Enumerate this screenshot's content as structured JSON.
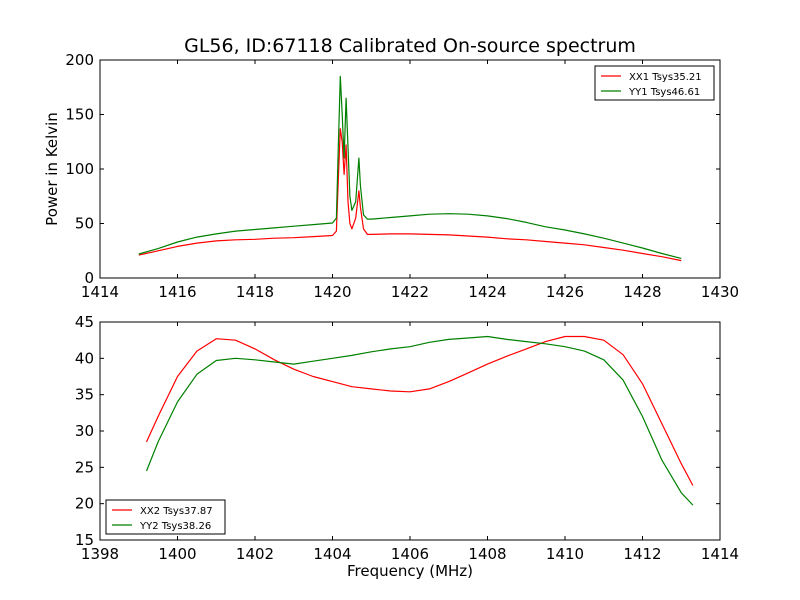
{
  "chart_data": [
    {
      "type": "line",
      "title": "GL56, ID:67118 Calibrated On-source spectrum",
      "xlabel": "",
      "ylabel": "Power in Kelvin",
      "xlim": [
        1414,
        1430
      ],
      "ylim": [
        0,
        200
      ],
      "x_ticks": [
        1414,
        1416,
        1418,
        1420,
        1422,
        1424,
        1426,
        1428,
        1430
      ],
      "y_ticks": [
        0,
        50,
        100,
        150,
        200
      ],
      "grid": false,
      "legend_position": "top-right",
      "series": [
        {
          "name": "XX1 Tsys35.21",
          "color": "#ff0000",
          "x": [
            1415.0,
            1415.5,
            1416.0,
            1416.5,
            1417.0,
            1417.5,
            1418.0,
            1418.5,
            1419.0,
            1419.5,
            1420.0,
            1420.1,
            1420.15,
            1420.2,
            1420.25,
            1420.3,
            1420.35,
            1420.4,
            1420.45,
            1420.5,
            1420.6,
            1420.68,
            1420.72,
            1420.8,
            1420.9,
            1421.0,
            1421.5,
            1422.0,
            1422.5,
            1423.0,
            1423.5,
            1424.0,
            1424.5,
            1425.0,
            1425.5,
            1426.0,
            1426.5,
            1427.0,
            1427.5,
            1428.0,
            1428.5,
            1429.0
          ],
          "values": [
            21,
            25,
            29,
            32,
            34,
            35,
            35.5,
            36.5,
            37,
            38,
            39,
            43,
            90,
            137,
            125,
            95,
            122,
            70,
            50,
            45,
            55,
            80,
            65,
            45,
            40,
            40,
            40.5,
            40.5,
            40,
            39.5,
            38.5,
            37.5,
            36,
            35,
            33.5,
            32,
            30.5,
            28,
            25.5,
            22.5,
            19.5,
            16
          ]
        },
        {
          "name": "YY1 Tsys46.61",
          "color": "#008000",
          "x": [
            1415.0,
            1415.5,
            1416.0,
            1416.5,
            1417.0,
            1417.5,
            1418.0,
            1418.5,
            1419.0,
            1419.5,
            1420.0,
            1420.1,
            1420.15,
            1420.2,
            1420.25,
            1420.3,
            1420.35,
            1420.4,
            1420.45,
            1420.5,
            1420.6,
            1420.68,
            1420.72,
            1420.8,
            1420.9,
            1421.0,
            1421.5,
            1422.0,
            1422.5,
            1423.0,
            1423.5,
            1424.0,
            1424.5,
            1425.0,
            1425.5,
            1426.0,
            1426.5,
            1427.0,
            1427.5,
            1428.0,
            1428.5,
            1429.0
          ],
          "values": [
            22,
            27,
            33,
            37.5,
            40.5,
            43,
            44.5,
            46,
            47.5,
            49,
            50.5,
            55,
            120,
            185,
            150,
            110,
            165,
            120,
            75,
            62,
            70,
            110,
            85,
            58,
            54,
            54,
            55.5,
            57,
            58.5,
            59,
            58.5,
            57,
            54.5,
            51,
            47,
            44,
            40.5,
            36.5,
            32,
            27.5,
            22.5,
            18
          ]
        }
      ]
    },
    {
      "type": "line",
      "title": "",
      "xlabel": "Frequency (MHz)",
      "ylabel": "",
      "xlim": [
        1398,
        1414
      ],
      "ylim": [
        15,
        45
      ],
      "x_ticks": [
        1398,
        1400,
        1402,
        1404,
        1406,
        1408,
        1410,
        1412,
        1414
      ],
      "y_ticks": [
        15,
        20,
        25,
        30,
        35,
        40,
        45
      ],
      "grid": false,
      "legend_position": "bottom-left",
      "series": [
        {
          "name": "XX2 Tsys37.87",
          "color": "#ff0000",
          "x": [
            1399.2,
            1399.5,
            1400.0,
            1400.5,
            1401.0,
            1401.5,
            1402.0,
            1402.5,
            1403.0,
            1403.5,
            1404.0,
            1404.5,
            1405.0,
            1405.5,
            1406.0,
            1406.5,
            1407.0,
            1407.5,
            1408.0,
            1408.5,
            1409.0,
            1409.5,
            1410.0,
            1410.5,
            1411.0,
            1411.5,
            1412.0,
            1412.5,
            1413.0,
            1413.3
          ],
          "values": [
            28.5,
            32,
            37.5,
            41,
            42.7,
            42.5,
            41.3,
            39.8,
            38.5,
            37.5,
            36.8,
            36.1,
            35.8,
            35.5,
            35.4,
            35.8,
            36.8,
            38,
            39.2,
            40.3,
            41.3,
            42.3,
            43,
            43,
            42.5,
            40.5,
            36.5,
            31,
            25.5,
            22.5
          ]
        },
        {
          "name": "YY2 Tsys38.26",
          "color": "#008000",
          "x": [
            1399.2,
            1399.5,
            1400.0,
            1400.5,
            1401.0,
            1401.5,
            1402.0,
            1402.5,
            1403.0,
            1403.5,
            1404.0,
            1404.5,
            1405.0,
            1405.5,
            1406.0,
            1406.5,
            1407.0,
            1407.5,
            1408.0,
            1408.5,
            1409.0,
            1409.5,
            1410.0,
            1410.5,
            1411.0,
            1411.5,
            1412.0,
            1412.5,
            1413.0,
            1413.3
          ],
          "values": [
            24.5,
            28.5,
            34,
            37.8,
            39.7,
            40,
            39.8,
            39.5,
            39.2,
            39.6,
            40,
            40.4,
            40.9,
            41.3,
            41.6,
            42.2,
            42.6,
            42.8,
            43,
            42.6,
            42.3,
            42,
            41.6,
            41,
            39.8,
            37,
            32,
            26,
            21.5,
            19.8
          ]
        }
      ]
    }
  ]
}
